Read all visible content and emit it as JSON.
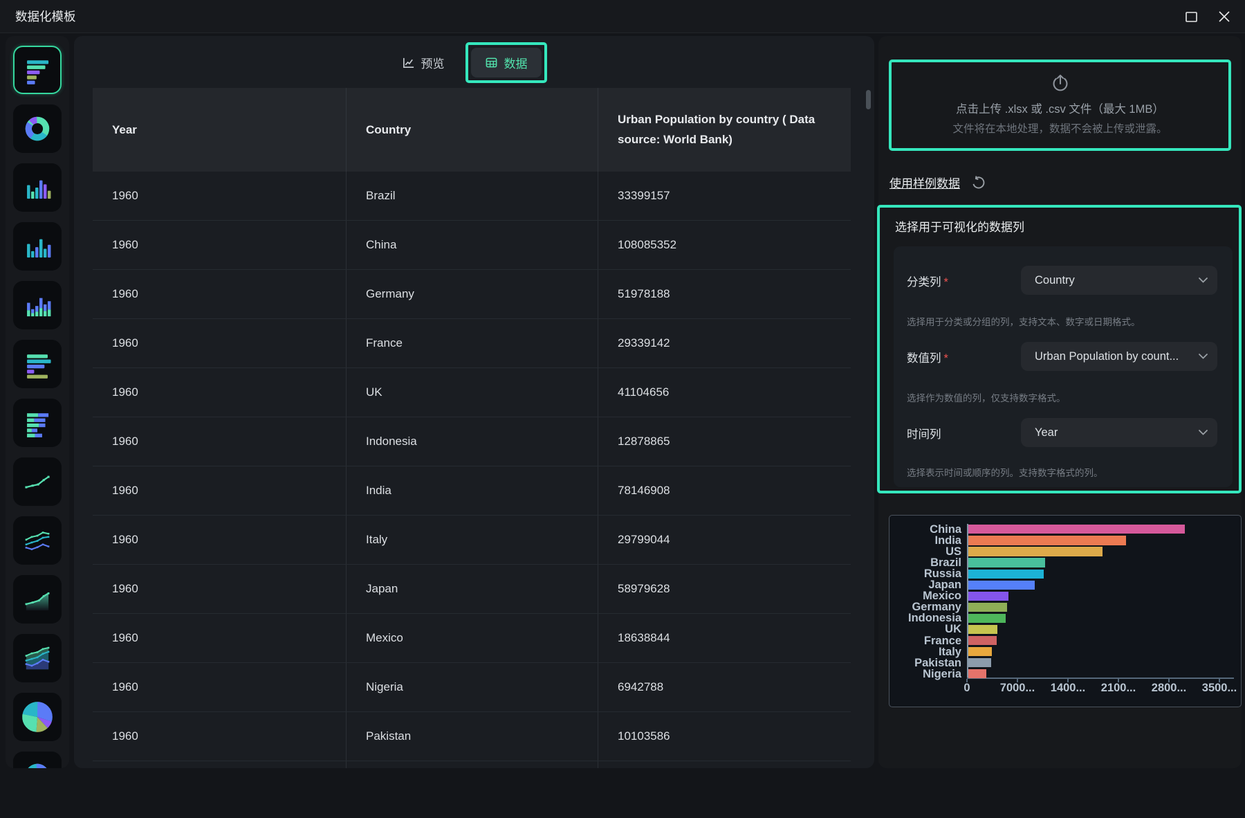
{
  "titlebar": {
    "title": "数据化模板"
  },
  "tabs": {
    "preview": "预览",
    "data": "数据"
  },
  "sidebar": {
    "items": [
      {
        "name": "horizontal-bar-chart",
        "selected": true
      },
      {
        "name": "donut-chart",
        "selected": false
      },
      {
        "name": "column-chart-multicolor",
        "selected": false
      },
      {
        "name": "column-chart",
        "selected": false
      },
      {
        "name": "stacked-column-chart",
        "selected": false
      },
      {
        "name": "bar-chart-multicolor",
        "selected": false
      },
      {
        "name": "stacked-bar-chart",
        "selected": false
      },
      {
        "name": "line-chart",
        "selected": false
      },
      {
        "name": "multi-line-chart",
        "selected": false
      },
      {
        "name": "area-chart",
        "selected": false
      },
      {
        "name": "stacked-area-chart",
        "selected": false
      },
      {
        "name": "pie-chart",
        "selected": false
      },
      {
        "name": "donut-chart-2",
        "selected": false
      }
    ]
  },
  "table": {
    "columns": [
      "Year",
      "Country",
      "Urban Population by country ( Data source: World Bank)"
    ],
    "rows": [
      [
        "1960",
        "Brazil",
        "33399157"
      ],
      [
        "1960",
        "China",
        "108085352"
      ],
      [
        "1960",
        "Germany",
        "51978188"
      ],
      [
        "1960",
        "France",
        "29339142"
      ],
      [
        "1960",
        "UK",
        "41104656"
      ],
      [
        "1960",
        "Indonesia",
        "12878865"
      ],
      [
        "1960",
        "India",
        "78146908"
      ],
      [
        "1960",
        "Italy",
        "29799044"
      ],
      [
        "1960",
        "Japan",
        "58979628"
      ],
      [
        "1960",
        "Mexico",
        "18638844"
      ],
      [
        "1960",
        "Nigeria",
        "6942788"
      ],
      [
        "1960",
        "Pakistan",
        "10103586"
      ]
    ]
  },
  "panel": {
    "upload": {
      "line1": "点击上传 .xlsx 或 .csv 文件（最大 1MB）",
      "line2": "文件将在本地处理，数据不会被上传或泄露。"
    },
    "sample_link": "使用样例数据",
    "section_title": "选择用于可视化的数据列",
    "fields": [
      {
        "label": "分类列",
        "required": true,
        "value": "Country",
        "hint": "选择用于分类或分组的列，支持文本、数字或日期格式。"
      },
      {
        "label": "数值列",
        "required": true,
        "value": "Urban Population by count...",
        "hint": "选择作为数值的列，仅支持数字格式。"
      },
      {
        "label": "时间列",
        "required": false,
        "value": "Year",
        "hint": "选择表示时间或顺序的列。支持数字格式的列。"
      }
    ]
  },
  "chart_data": {
    "type": "bar",
    "orientation": "horizontal",
    "title": "",
    "xlabel": "",
    "ylabel": "",
    "categories": [
      "China",
      "India",
      "US",
      "Brazil",
      "Russia",
      "Japan",
      "Mexico",
      "Germany",
      "Indonesia",
      "UK",
      "France",
      "Italy",
      "Pakistan",
      "Nigeria"
    ],
    "values": [
      300000000,
      219000000,
      186000000,
      106000000,
      104000000,
      92000000,
      56000000,
      54000000,
      52000000,
      40000000,
      39000000,
      33000000,
      32000000,
      25000000
    ],
    "xlim": [
      0,
      350000000
    ],
    "tick_labels": [
      "0",
      "7000...",
      "1400...",
      "2100...",
      "2800...",
      "3500..."
    ],
    "bar_colors": [
      "#d6599b",
      "#ec7a52",
      "#ddaa4a",
      "#49bf9c",
      "#1cb2d6",
      "#5580fa",
      "#8455ec",
      "#8fae57",
      "#4eb65b",
      "#c6c44f",
      "#cf6363",
      "#e8a83d",
      "#8c9cac",
      "#e4736b"
    ],
    "grid": false,
    "legend": false
  },
  "colors": {
    "annotation": "#35e7bd",
    "accent_teal": "#52e2ac"
  }
}
